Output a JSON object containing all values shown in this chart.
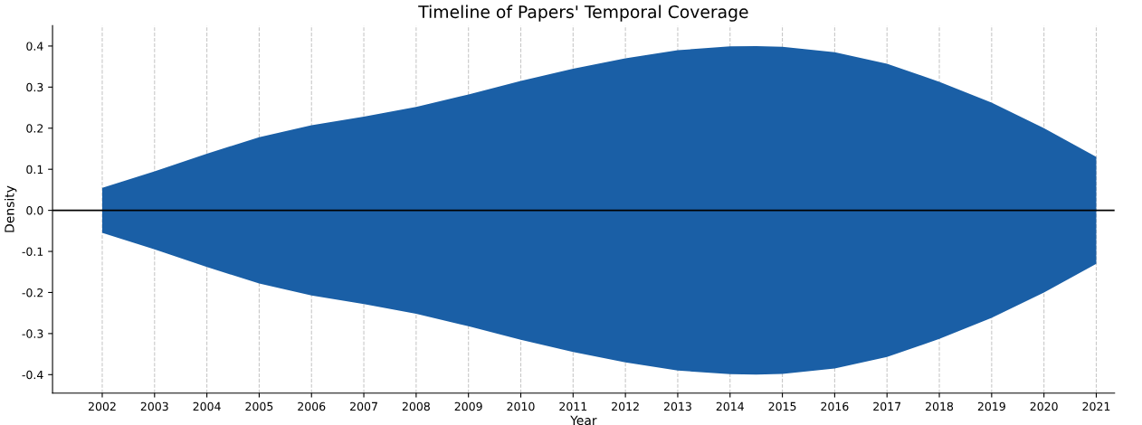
{
  "chart_data": {
    "type": "area",
    "title": "Timeline of Papers' Temporal Coverage",
    "xlabel": "Year",
    "ylabel": "Density",
    "x": [
      2002,
      2003,
      2004,
      2005,
      2006,
      2007,
      2008,
      2009,
      2010,
      2011,
      2012,
      2013,
      2014,
      2014.5,
      2015,
      2016,
      2017,
      2018,
      2019,
      2020,
      2021
    ],
    "series": [
      {
        "color": "#1a5fa6",
        "values": [
          0.055,
          0.095,
          0.138,
          0.178,
          0.207,
          0.228,
          0.252,
          0.282,
          0.315,
          0.345,
          0.37,
          0.39,
          0.399,
          0.4,
          0.398,
          0.385,
          0.357,
          0.313,
          0.262,
          0.2,
          0.13
        ]
      },
      {
        "color": "#1a5fa6",
        "values": [
          -0.055,
          -0.095,
          -0.138,
          -0.178,
          -0.207,
          -0.228,
          -0.252,
          -0.282,
          -0.315,
          -0.345,
          -0.37,
          -0.39,
          -0.399,
          -0.4,
          -0.398,
          -0.385,
          -0.357,
          -0.313,
          -0.262,
          -0.2,
          -0.13
        ]
      }
    ],
    "xlim": [
      2001.05,
      2021.35
    ],
    "xticks": [
      2002,
      2003,
      2004,
      2005,
      2006,
      2007,
      2008,
      2009,
      2010,
      2011,
      2012,
      2013,
      2014,
      2015,
      2016,
      2017,
      2018,
      2019,
      2020,
      2021
    ],
    "ylim": [
      -0.445,
      0.45
    ],
    "yticks": [
      -0.4,
      -0.3,
      -0.2,
      -0.1,
      {
        "value": 0,
        "label": "0.0"
      },
      0.1,
      0.2,
      0.3,
      0.4
    ],
    "ref_lines": [
      {
        "axis": "y",
        "value": 0,
        "color": "#000000"
      }
    ],
    "grid": "x",
    "legend": false
  }
}
